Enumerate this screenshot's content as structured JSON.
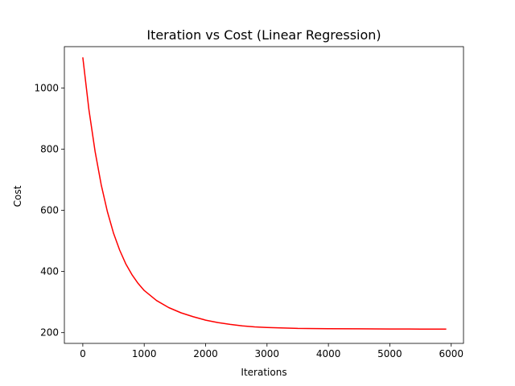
{
  "chart_data": {
    "type": "line",
    "title": "Iteration vs Cost (Linear Regression)",
    "xlabel": "Iterations",
    "ylabel": "Cost",
    "xlim": [
      -300,
      6200
    ],
    "ylim": [
      165,
      1135
    ],
    "xticks": [
      0,
      1000,
      2000,
      3000,
      4000,
      5000,
      6000
    ],
    "yticks": [
      200,
      400,
      600,
      800,
      1000
    ],
    "grid": false,
    "legend": "none",
    "series": [
      {
        "color": "#ff0000",
        "x": [
          0,
          100,
          200,
          300,
          400,
          500,
          600,
          700,
          800,
          900,
          1000,
          1200,
          1400,
          1600,
          1800,
          2000,
          2200,
          2400,
          2600,
          2800,
          3000,
          3500,
          4000,
          4500,
          5000,
          5500,
          5920
        ],
        "y": [
          1100,
          929,
          792,
          683,
          596,
          526,
          470,
          425,
          390,
          361,
          338,
          305,
          282,
          265,
          252,
          241,
          233,
          227,
          222,
          219,
          217,
          214,
          213,
          212.5,
          212,
          211.8,
          211.5
        ]
      }
    ]
  }
}
